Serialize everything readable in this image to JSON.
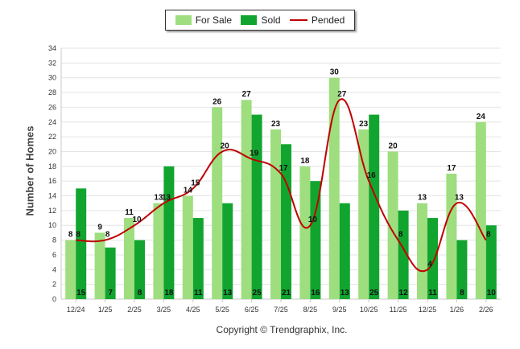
{
  "chart_data": {
    "type": "bar",
    "title": "",
    "xlabel": "",
    "ylabel": "Number of Homes",
    "ylim": [
      0,
      34
    ],
    "yticks": [
      0,
      2,
      4,
      6,
      8,
      10,
      12,
      14,
      16,
      18,
      20,
      22,
      24,
      26,
      28,
      30,
      32,
      34
    ],
    "grid": true,
    "legend_position": "top-center",
    "categories": [
      "12/24",
      "1/25",
      "2/25",
      "3/25",
      "4/25",
      "5/25",
      "6/25",
      "7/25",
      "8/25",
      "9/25",
      "10/25",
      "11/25",
      "12/25",
      "1/26",
      "2/26"
    ],
    "series": [
      {
        "name": "For Sale",
        "kind": "bar",
        "color": "#9ede7f",
        "values": [
          8,
          9,
          11,
          13,
          14,
          26,
          27,
          23,
          18,
          30,
          23,
          20,
          13,
          17,
          24
        ]
      },
      {
        "name": "Sold",
        "kind": "bar",
        "color": "#11a52f",
        "values": [
          15,
          7,
          8,
          18,
          11,
          13,
          25,
          21,
          16,
          13,
          25,
          12,
          11,
          8,
          10
        ]
      },
      {
        "name": "Pended",
        "kind": "line",
        "color": "#c00000",
        "values": [
          8,
          8,
          10,
          13,
          15,
          20,
          19,
          17,
          10,
          27,
          16,
          8,
          4,
          13,
          8
        ]
      }
    ]
  },
  "legend": {
    "for_sale": "For Sale",
    "sold": "Sold",
    "pended": "Pended"
  },
  "footer": {
    "copyright": "Copyright © Trendgraphix, Inc."
  }
}
